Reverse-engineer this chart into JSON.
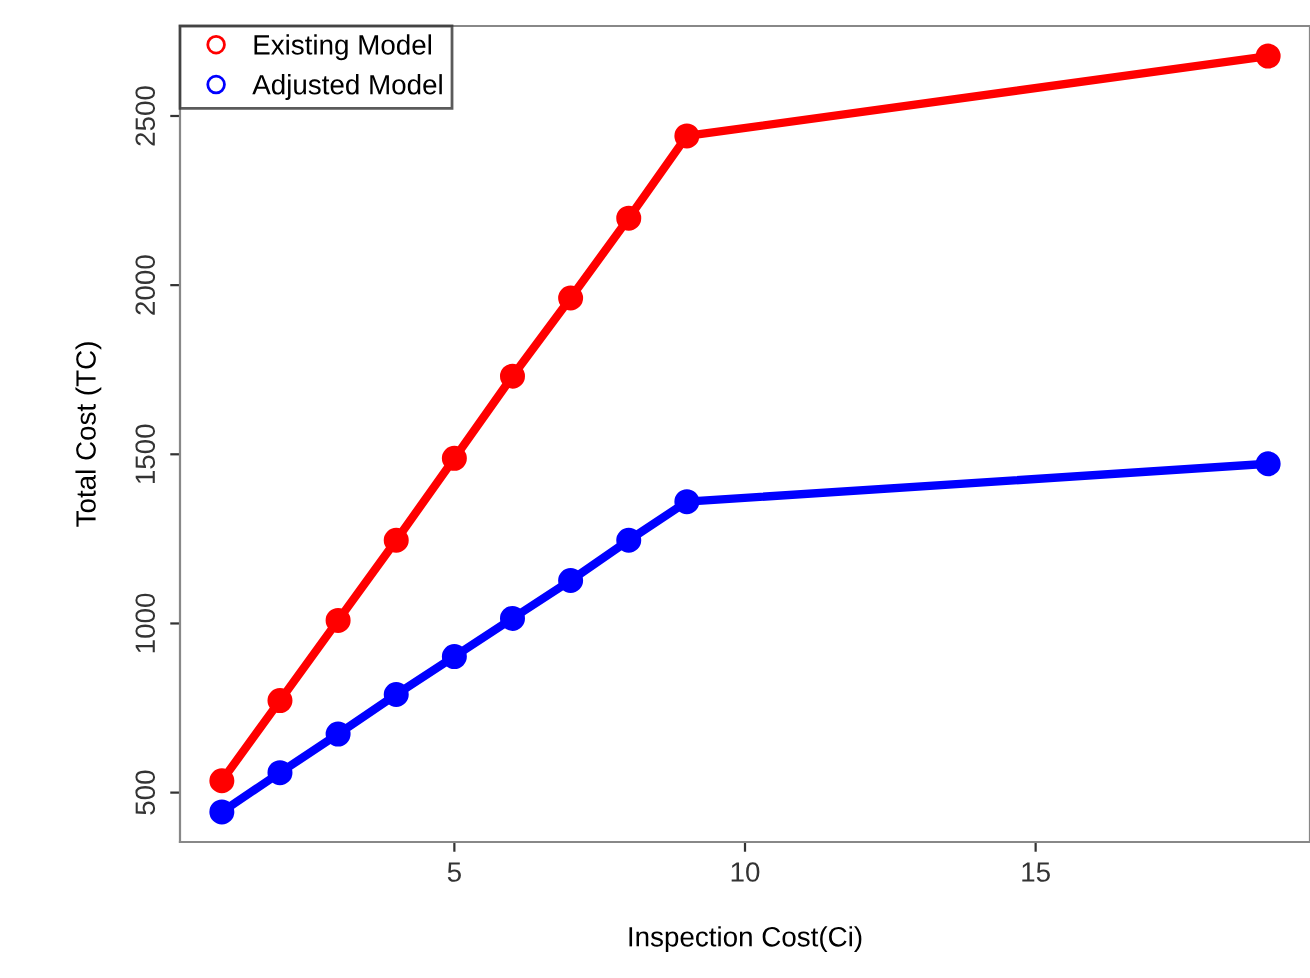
{
  "chart_data": {
    "type": "line",
    "xlabel": "Inspection Cost(Ci)",
    "ylabel": "Total Cost (TC)",
    "x": [
      1,
      2,
      3,
      4,
      5,
      6,
      7,
      8,
      9,
      19
    ],
    "series": [
      {
        "name": "Existing Model",
        "color": "#ff0000",
        "values": [
          535,
          772,
          1009,
          1246,
          1488,
          1731,
          1962,
          2198,
          2441,
          2677
        ]
      },
      {
        "name": "Adjusted Model",
        "color": "#0000ff",
        "values": [
          443,
          559,
          673,
          790,
          902,
          1015,
          1127,
          1246,
          1360,
          1472
        ]
      }
    ],
    "xlim": [
      0.28,
      19.72
    ],
    "ylim": [
      354,
      2766
    ],
    "xticks": [
      5,
      10,
      15
    ],
    "yticks": [
      500,
      1000,
      1500,
      2000,
      2500
    ],
    "marker": "circle",
    "line_style": "solid",
    "grid": false,
    "legend": "top left"
  }
}
